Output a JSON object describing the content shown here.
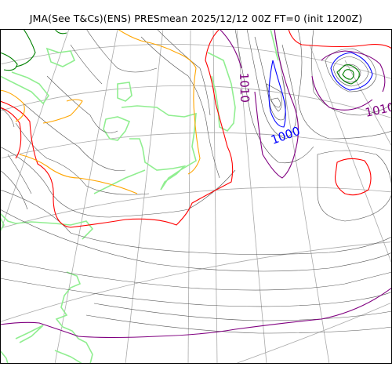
{
  "title": "JMA(See T&Cs)(ENS) PRESmean 2025/12/12 00Z FT=0 (init 1200Z)",
  "contour_labels": [
    {
      "text": "1010",
      "color": "#800080"
    },
    {
      "text": "1000",
      "color": "#0000ff"
    },
    {
      "text": "1010",
      "color": "#800080"
    }
  ],
  "colors": {
    "graticule": "#aaaaaa",
    "isobar": "#555555",
    "coastline": "#90ee90",
    "isobar_1010": "#800080",
    "isobar_1000": "#0000ff",
    "isobar_1020": "#ff0000",
    "isobar_orange": "#ffa500",
    "isobar_green": "#008000"
  }
}
